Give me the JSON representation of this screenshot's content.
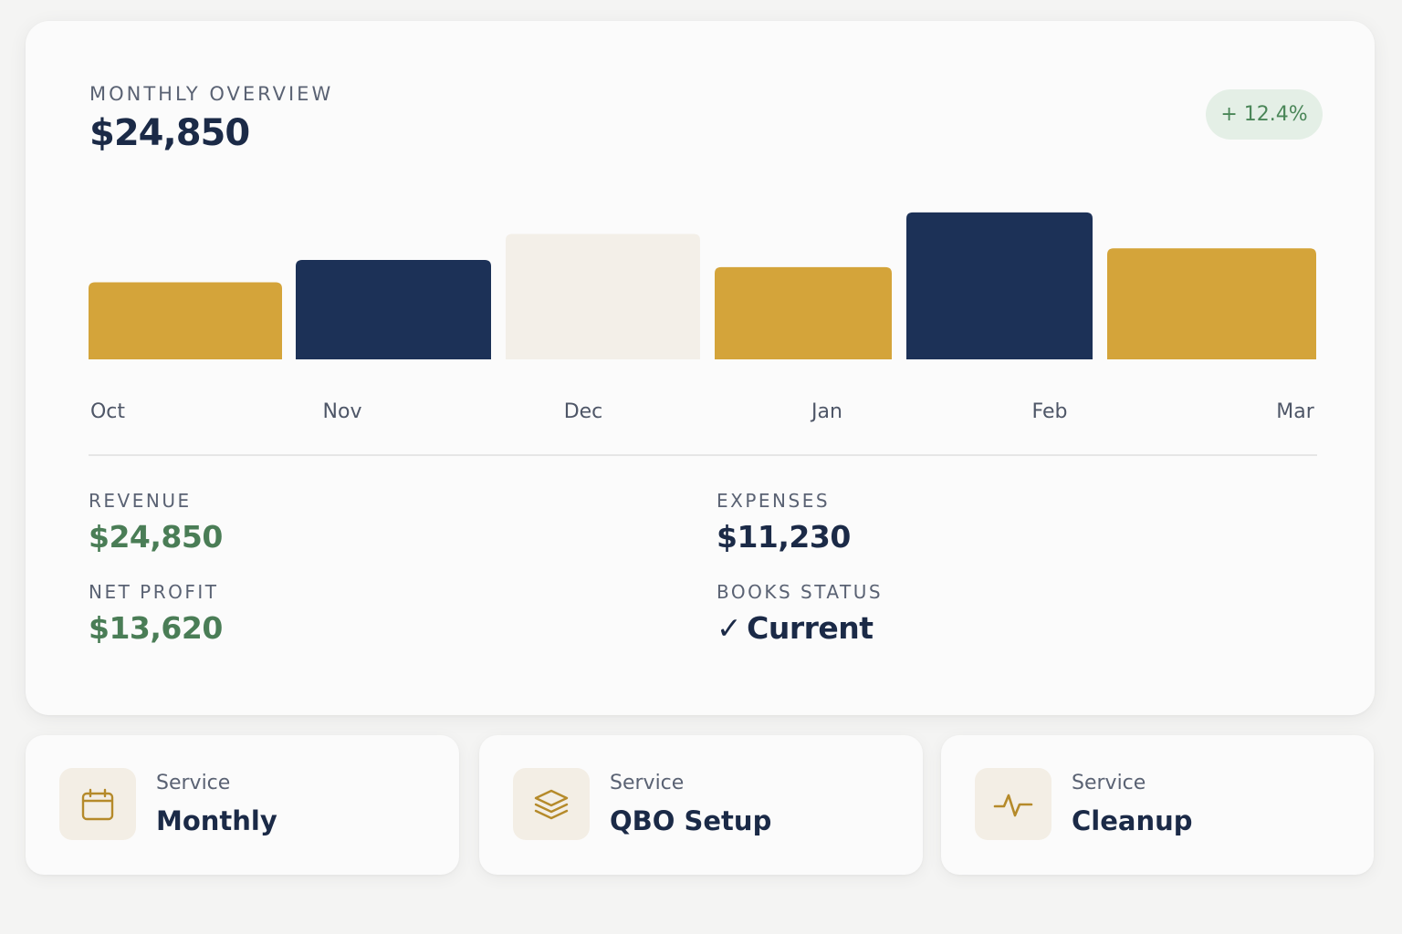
{
  "overview": {
    "title": "MONTHLY OVERVIEW",
    "total": "$24,850",
    "change": "+ 12.4%"
  },
  "chart_data": {
    "type": "bar",
    "categories": [
      "Oct",
      "Nov",
      "Dec",
      "Jan",
      "Feb",
      "Mar"
    ],
    "values": [
      86,
      111,
      140,
      103,
      164,
      124
    ],
    "colors": [
      "#d4a43a",
      "#1c3157",
      "#f3efe8",
      "#d4a43a",
      "#1c3157",
      "#d4a43a"
    ],
    "ylim": [
      0,
      170
    ],
    "grid": false
  },
  "metrics": {
    "revenue": {
      "label": "REVENUE",
      "value": "$24,850"
    },
    "expenses": {
      "label": "EXPENSES",
      "value": "$11,230"
    },
    "net_profit": {
      "label": "NET PROFIT",
      "value": "$13,620"
    },
    "books_status": {
      "label": "BOOKS STATUS",
      "check": "✓",
      "value": "Current"
    }
  },
  "services": [
    {
      "kicker": "Service",
      "name": "Monthly",
      "icon": "calendar-icon"
    },
    {
      "kicker": "Service",
      "name": "QBO Setup",
      "icon": "layers-icon"
    },
    {
      "kicker": "Service",
      "name": "Cleanup",
      "icon": "activity-icon"
    }
  ],
  "colors": {
    "navy": "#1c3157",
    "gold": "#d4a43a",
    "cream": "#f3efe8",
    "green": "#4a7d56",
    "icon_gold": "#b58a2a"
  }
}
